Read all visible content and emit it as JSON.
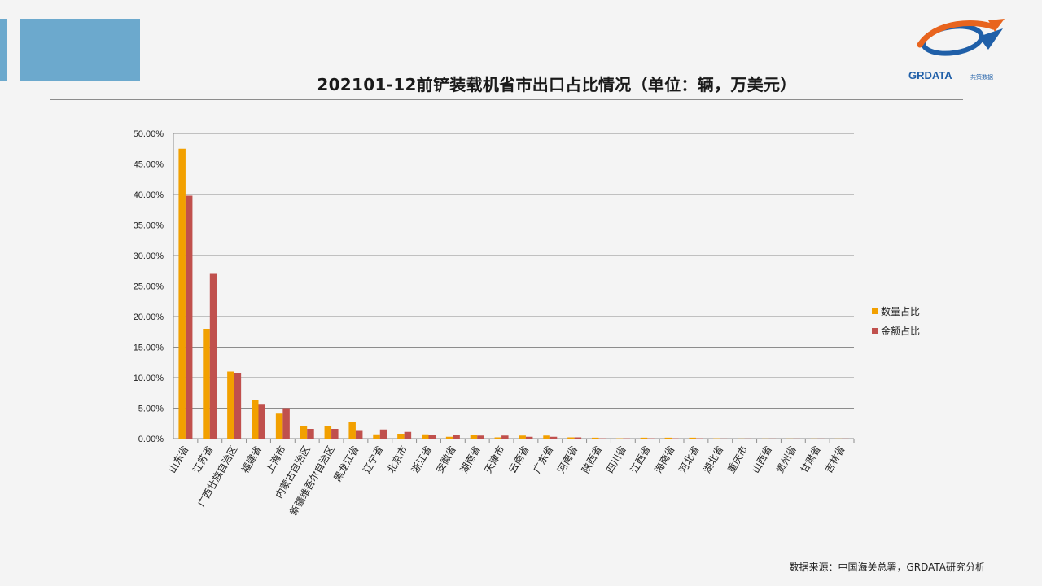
{
  "title": "202101-12前铲装载机省市出口占比情况（单位：辆，万美元）",
  "source": "数据来源：中国海关总署，GRDATA研究分析",
  "logo": {
    "text": "GRDATA",
    "subtext": "共策数据"
  },
  "colors": {
    "quantity": "#f2a000",
    "amount": "#c0504d",
    "accent": "#6ca9cd",
    "grid": "#8c8c8c"
  },
  "chart_data": {
    "type": "bar",
    "title": "202101-12前铲装载机省市出口占比情况（单位：辆，万美元）",
    "xlabel": "",
    "ylabel": "",
    "ylim": [
      0,
      50
    ],
    "yticks": [
      "0.00%",
      "5.00%",
      "10.00%",
      "15.00%",
      "20.00%",
      "25.00%",
      "30.00%",
      "35.00%",
      "40.00%",
      "45.00%",
      "50.00%"
    ],
    "grid": true,
    "legend": "right",
    "categories": [
      "山东省",
      "江苏省",
      "广西壮族自治区",
      "福建省",
      "上海市",
      "内蒙古自治区",
      "新疆维吾尔自治区",
      "黑龙江省",
      "辽宁省",
      "北京市",
      "浙江省",
      "安徽省",
      "湖南省",
      "天津市",
      "云南省",
      "广东省",
      "河南省",
      "陕西省",
      "四川省",
      "江西省",
      "海南省",
      "河北省",
      "湖北省",
      "重庆市",
      "山西省",
      "贵州省",
      "甘肃省",
      "吉林省"
    ],
    "series": [
      {
        "name": "数量占比",
        "values": [
          47.5,
          18.0,
          11.0,
          6.4,
          4.1,
          2.1,
          2.0,
          2.8,
          0.7,
          0.8,
          0.7,
          0.3,
          0.6,
          0.2,
          0.5,
          0.5,
          0.2,
          0.15,
          0.05,
          0.15,
          0.15,
          0.15,
          0.05,
          0.02,
          0.02,
          0.02,
          0.02,
          0.02
        ]
      },
      {
        "name": "金额占比",
        "values": [
          39.8,
          27.0,
          10.8,
          5.7,
          5.0,
          1.6,
          1.6,
          1.4,
          1.5,
          1.1,
          0.6,
          0.6,
          0.5,
          0.5,
          0.3,
          0.3,
          0.2,
          0.05,
          0.05,
          0.05,
          0.05,
          0.05,
          0.02,
          0.02,
          0.02,
          0.02,
          0.02,
          0.02
        ]
      }
    ]
  }
}
